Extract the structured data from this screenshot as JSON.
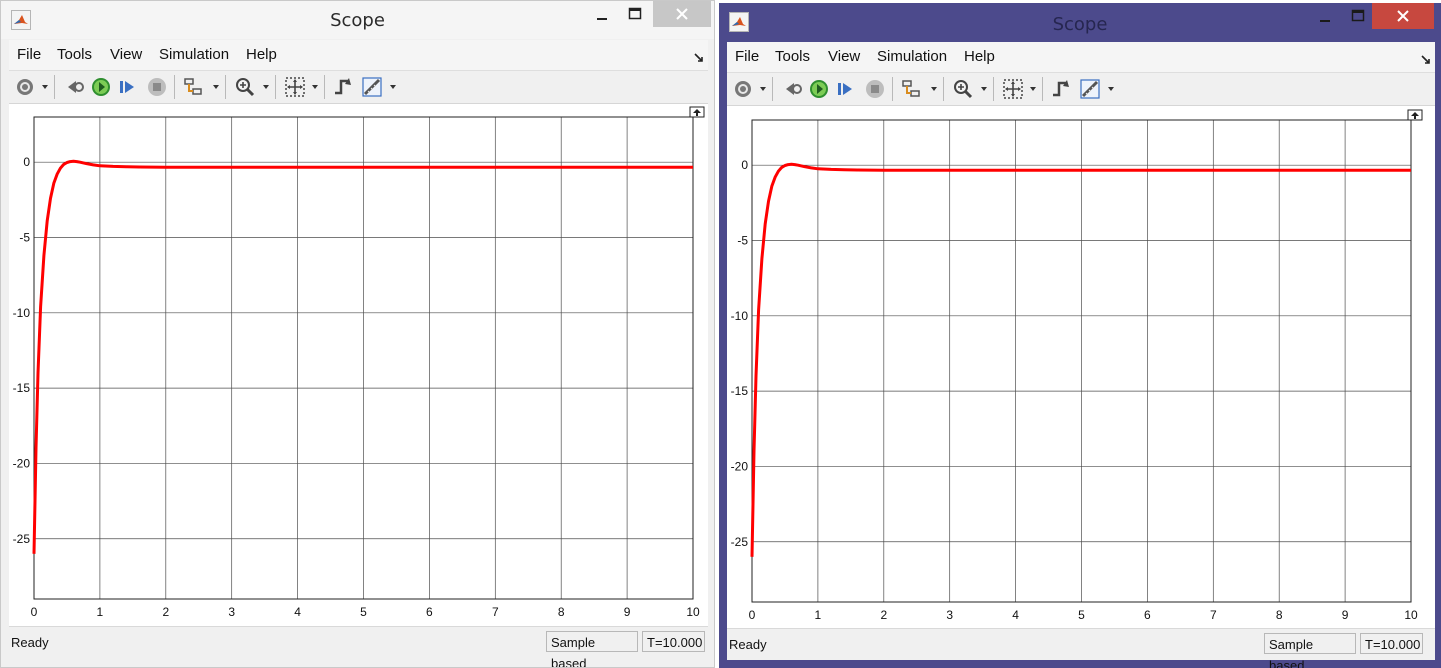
{
  "windows": [
    {
      "id": "w1",
      "title": "Scope",
      "menu": [
        "File",
        "Tools",
        "View",
        "Simulation",
        "Help"
      ],
      "status": {
        "text": "Ready",
        "mode": "Sample based",
        "time": "T=10.000"
      },
      "chart_data": {
        "type": "line",
        "xlim": [
          0,
          10
        ],
        "ylim": [
          -29,
          3
        ],
        "xticks": [
          0,
          1,
          2,
          3,
          4,
          5,
          6,
          7,
          8,
          9,
          10
        ],
        "yticks": [
          0,
          -5,
          -10,
          -15,
          -20,
          -25
        ],
        "grid": true,
        "series": [
          {
            "color": "#ff0000",
            "x": [
              0,
              0.03,
              0.06,
              0.1,
              0.15,
              0.2,
              0.25,
              0.3,
              0.35,
              0.4,
              0.45,
              0.5,
              0.55,
              0.6,
              0.65,
              0.7,
              0.8,
              0.9,
              1.0,
              1.2,
              1.4,
              1.6,
              2.0,
              3,
              4,
              5,
              6,
              7,
              8,
              9,
              10
            ],
            "y": [
              -26,
              -19,
              -14,
              -9.6,
              -6.2,
              -3.9,
              -2.4,
              -1.4,
              -0.8,
              -0.4,
              -0.15,
              -0.02,
              0.04,
              0.06,
              0.04,
              0.0,
              -0.1,
              -0.18,
              -0.24,
              -0.28,
              -0.3,
              -0.32,
              -0.33,
              -0.33,
              -0.33,
              -0.33,
              -0.33,
              -0.33,
              -0.33,
              -0.33,
              -0.33
            ]
          }
        ]
      }
    },
    {
      "id": "w2",
      "title": "Scope",
      "menu": [
        "File",
        "Tools",
        "View",
        "Simulation",
        "Help"
      ],
      "status": {
        "text": "Ready",
        "mode": "Sample based",
        "time": "T=10.000"
      },
      "chart_data": {
        "type": "line",
        "xlim": [
          0,
          10
        ],
        "ylim": [
          -29,
          3
        ],
        "xticks": [
          0,
          1,
          2,
          3,
          4,
          5,
          6,
          7,
          8,
          9,
          10
        ],
        "yticks": [
          0,
          -5,
          -10,
          -15,
          -20,
          -25
        ],
        "grid": true,
        "series": [
          {
            "color": "#ff0000",
            "x": [
              0,
              0.03,
              0.06,
              0.1,
              0.15,
              0.2,
              0.25,
              0.3,
              0.35,
              0.4,
              0.45,
              0.5,
              0.55,
              0.6,
              0.65,
              0.7,
              0.8,
              0.9,
              1.0,
              1.2,
              1.4,
              1.6,
              2.0,
              3,
              4,
              5,
              6,
              7,
              8,
              9,
              10
            ],
            "y": [
              -26,
              -19,
              -14,
              -9.6,
              -6.2,
              -3.9,
              -2.4,
              -1.4,
              -0.8,
              -0.4,
              -0.15,
              -0.02,
              0.04,
              0.06,
              0.04,
              0.0,
              -0.1,
              -0.18,
              -0.24,
              -0.28,
              -0.3,
              -0.32,
              -0.33,
              -0.33,
              -0.33,
              -0.33,
              -0.33,
              -0.33,
              -0.33,
              -0.33,
              -0.33
            ]
          }
        ]
      }
    }
  ]
}
